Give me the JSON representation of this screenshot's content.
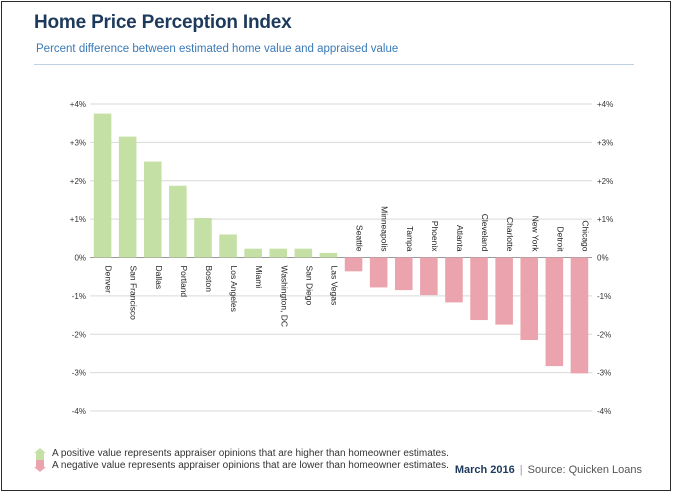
{
  "header": {
    "title": "Home Price Perception Index",
    "subtitle": "Percent difference between estimated home value and appraised value"
  },
  "chart_data": {
    "type": "bar",
    "title": "Home Price Perception Index",
    "subtitle": "Percent difference between estimated home value and appraised value",
    "xlabel": "",
    "ylabel": "",
    "ylim": [
      -4,
      4
    ],
    "ytick_values": [
      4,
      3,
      2,
      1,
      0,
      -1,
      -2,
      -3,
      -4
    ],
    "ytick_labels": [
      "+4%",
      "+3%",
      "+2%",
      "+1%",
      "0%",
      "-1%",
      "-2%",
      "-3%",
      "-4%"
    ],
    "grid": true,
    "categories": [
      "Denver",
      "San Francisco",
      "Dallas",
      "Portland",
      "Boston",
      "Los Angeles",
      "Miami",
      "Washington, DC",
      "San Diego",
      "Las Vegas",
      "Seattle",
      "Minneapolis",
      "Tampa",
      "Phoenix",
      "Atlanta",
      "Cleveland",
      "Charlotte",
      "New York",
      "Detroit",
      "Chicago"
    ],
    "values": [
      3.75,
      3.15,
      2.5,
      1.87,
      1.03,
      0.6,
      0.23,
      0.23,
      0.23,
      0.12,
      -0.36,
      -0.78,
      -0.85,
      -0.98,
      -1.17,
      -1.63,
      -1.75,
      -2.15,
      -2.83,
      -3.02
    ],
    "colors": {
      "positive": "#c5e0a5",
      "negative": "#eba4ad"
    }
  },
  "legend": {
    "positive_text": "A positive value represents appraiser opinions that are higher than homeowner estimates.",
    "negative_text": "A negative value represents appraiser opinions that are lower than homeowner estimates.",
    "positive_color": "#c5e0a5",
    "negative_color": "#eba4ad"
  },
  "footer": {
    "date": "March 2016",
    "separator": "|",
    "source": "Source: Quicken Loans"
  }
}
